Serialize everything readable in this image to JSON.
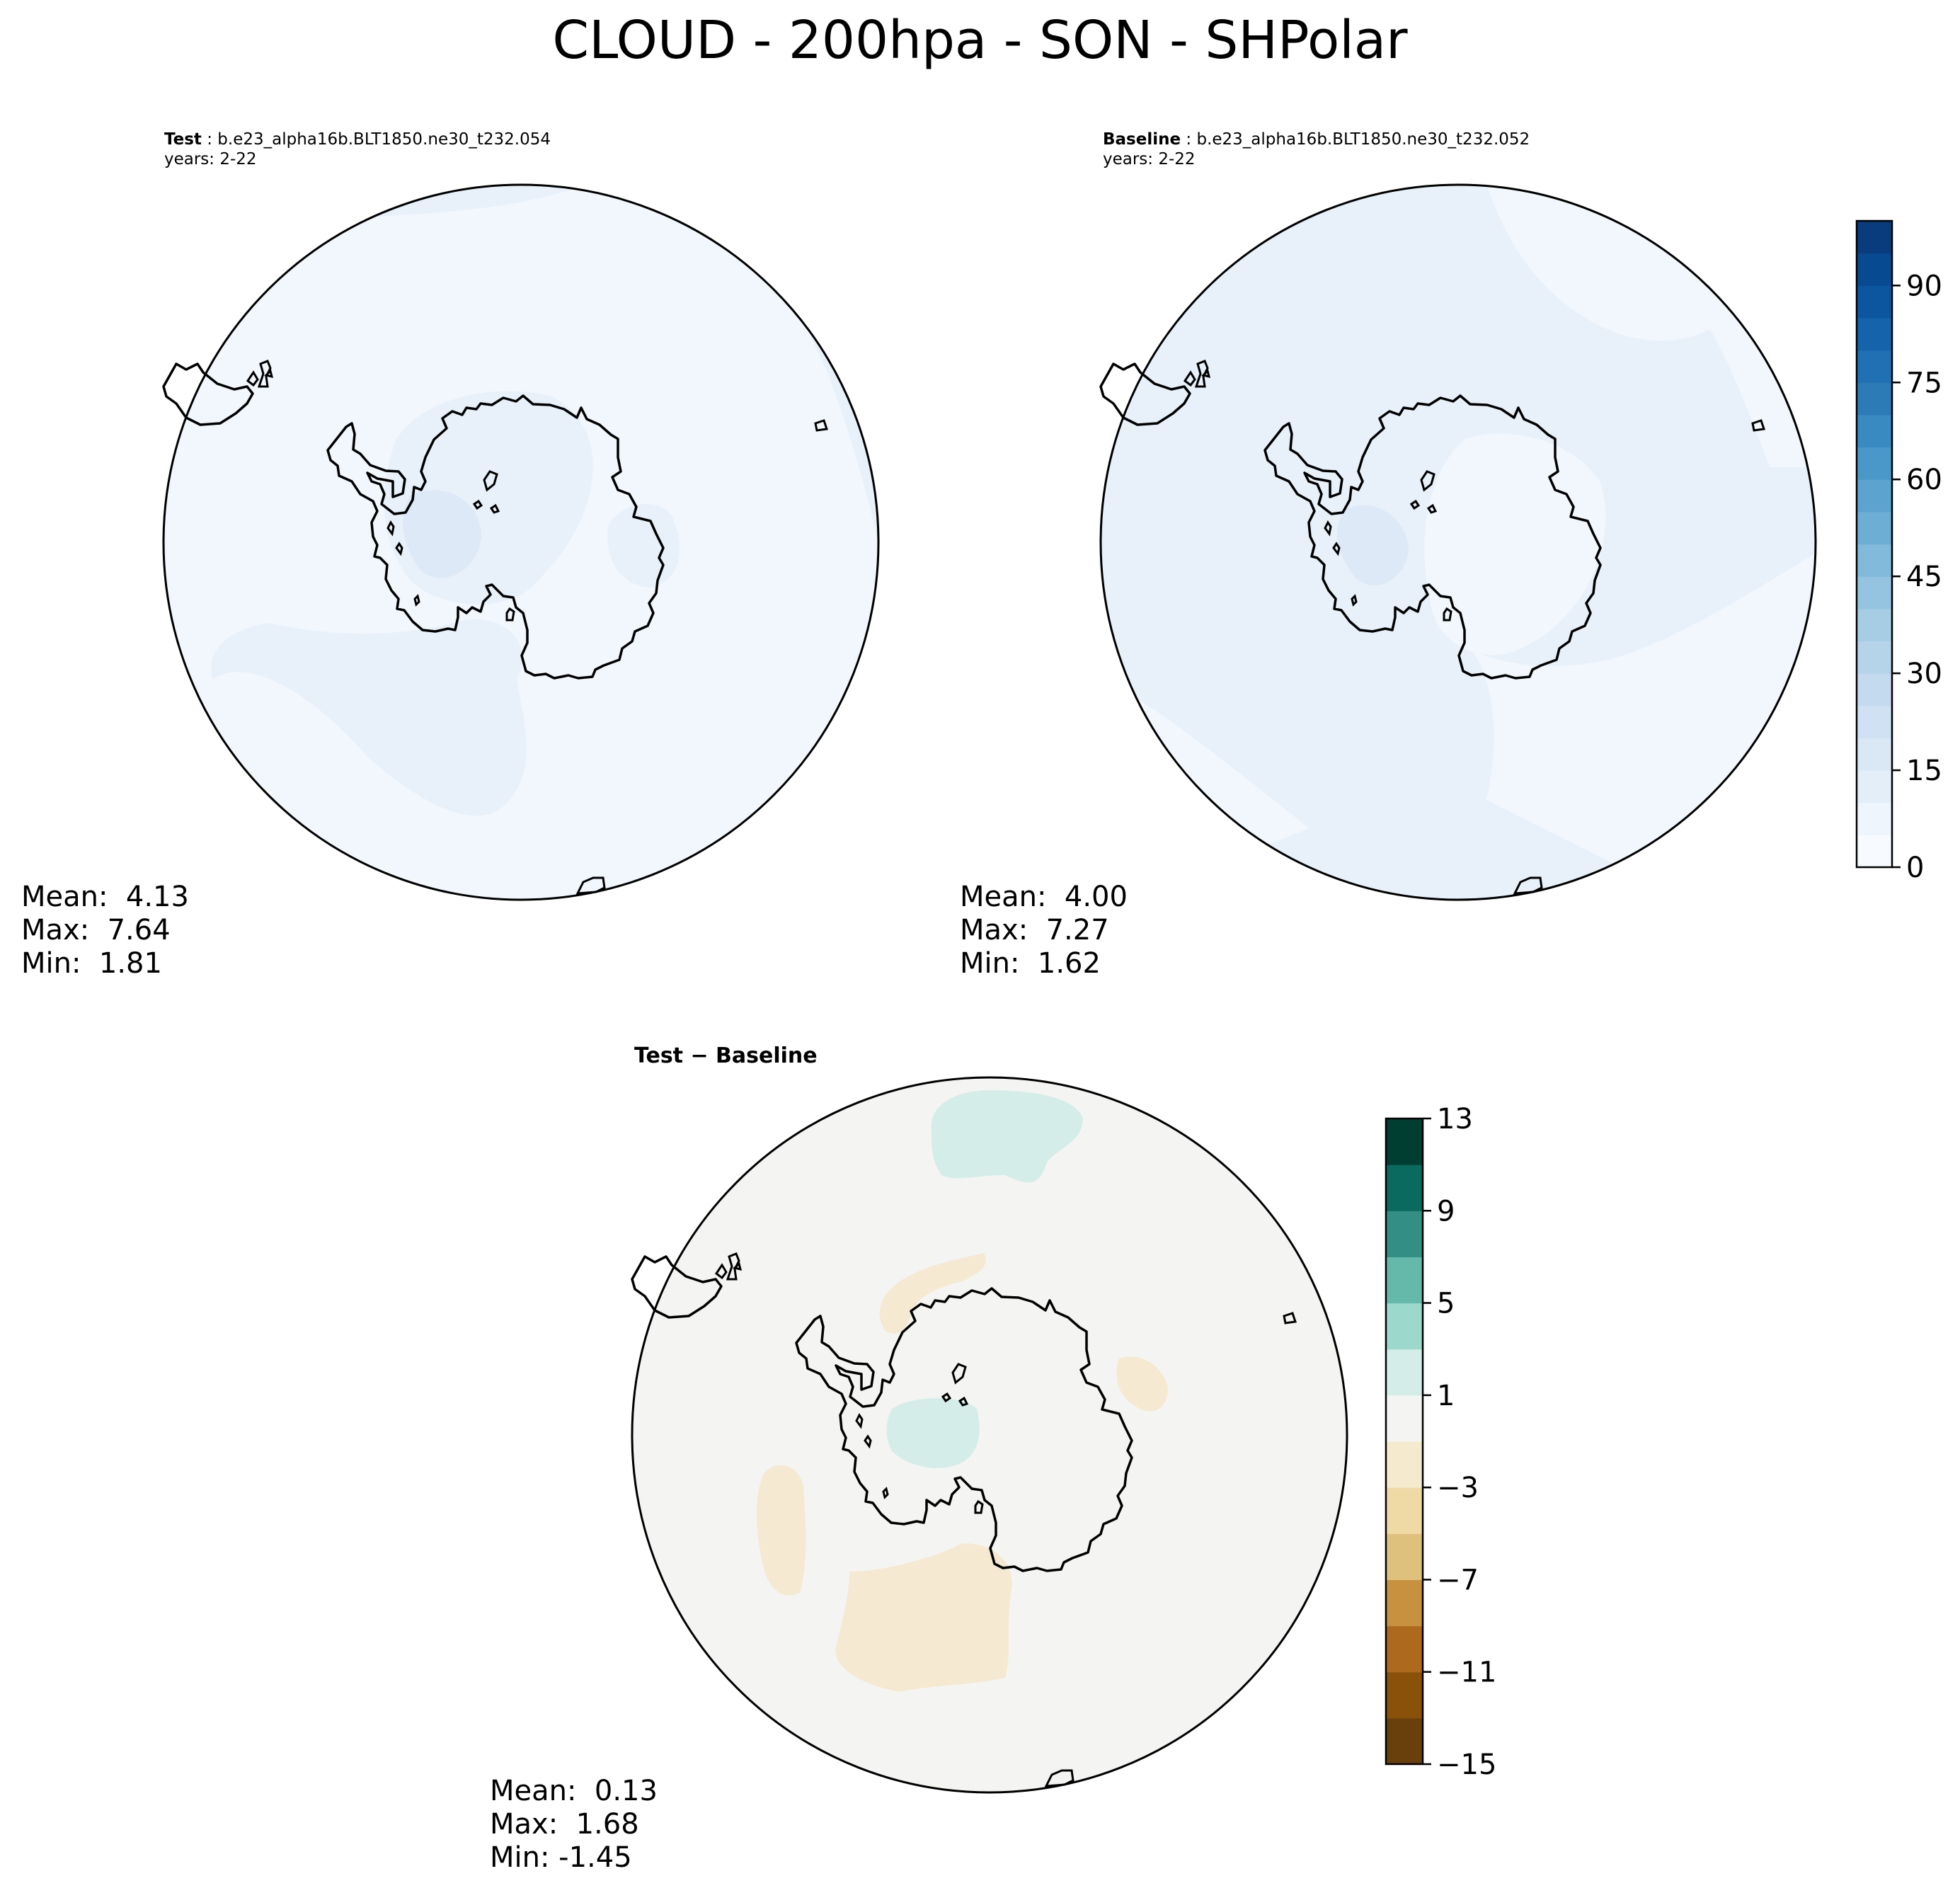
{
  "figure": {
    "title": "CLOUD - 200hpa - SON - SHPolar"
  },
  "panels": [
    {
      "id": "test",
      "label": "Test",
      "case": "b.e23_alpha16b.BLT1850.ne30_t232.054",
      "years": "years: 2-22",
      "stats": {
        "mean": "Mean:  4.13",
        "max": "Max:  7.64",
        "min": "Min:  1.81"
      }
    },
    {
      "id": "baseline",
      "label": "Baseline",
      "case": "b.e23_alpha16b.BLT1850.ne30_t232.052",
      "years": "years: 2-22",
      "stats": {
        "mean": "Mean:  4.00",
        "max": "Max:  7.27",
        "min": "Min:  1.62"
      }
    },
    {
      "id": "diff",
      "label": "Test − Baseline",
      "stats": {
        "mean": "Mean:  0.13",
        "max": "Max:  1.68",
        "min": "Min: -1.45"
      }
    }
  ],
  "colorbars": {
    "main": {
      "min": 0,
      "max": 100,
      "tick_labels": [
        "0",
        "15",
        "30",
        "45",
        "60",
        "75",
        "90"
      ],
      "tick_values": [
        0,
        15,
        30,
        45,
        60,
        75,
        90
      ],
      "colors": [
        "#f7fbff",
        "#eef5fc",
        "#e3eef9",
        "#dae8f6",
        "#cfe1f2",
        "#c4daee",
        "#b5d4e9",
        "#a6cde4",
        "#94c4df",
        "#81badb",
        "#6daed5",
        "#5ca3d0",
        "#4a98c9",
        "#3a8ac2",
        "#2c7bb6",
        "#2070b4",
        "#1563aa",
        "#0c56a0",
        "#084a91",
        "#083c7d"
      ]
    },
    "diff": {
      "min": -15,
      "max": 13,
      "tick_labels": [
        "13",
        "9",
        "5",
        "1",
        "−3",
        "−7",
        "−11",
        "−15"
      ],
      "tick_values": [
        13,
        9,
        5,
        1,
        -3,
        -7,
        -11,
        -15
      ],
      "colors": [
        "#693f0c",
        "#8a510b",
        "#ad6a1f",
        "#c8913f",
        "#dfc17e",
        "#efdaa6",
        "#f5e9ce",
        "#f4f5f3",
        "#d5ede9",
        "#9dd8cc",
        "#65b9ab",
        "#338f84",
        "#0b6a5f",
        "#013e32"
      ]
    }
  },
  "colors": {
    "map_low": "#f2f7fd",
    "map_mid": "#e8f0fa",
    "map_high": "#dde9f6",
    "diff_neutral": "#f4f5f3",
    "diff_pos": "#d5ede9",
    "diff_neg": "#f5e9d2",
    "coast": "#000000"
  }
}
